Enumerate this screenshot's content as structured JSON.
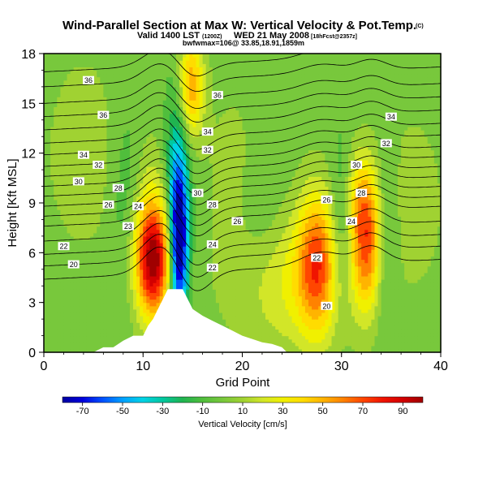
{
  "title": {
    "main": "Wind-Parallel Section at Max W: Vertical Velocity & Pot.Temp.",
    "copyright": "(C)",
    "valid": "Valid 1400 LST",
    "valid_small": "(1200Z)",
    "date": "WED 21 May 2008",
    "forecast": "[18hFcst@2357z]",
    "sub": "bwfwmax=106@ 33.85,18.91,1859m"
  },
  "chart_data": {
    "type": "heatmap",
    "title": "Wind-Parallel Section at Max W: Vertical Velocity & Pot.Temp.",
    "xlabel": "Grid Point",
    "ylabel": "Height [Kft MSL]",
    "xlim": [
      0,
      40
    ],
    "ylim": [
      0,
      18
    ],
    "xticks": [
      0,
      10,
      20,
      30,
      40
    ],
    "yticks": [
      0,
      3,
      6,
      9,
      12,
      15,
      18
    ],
    "colorbar": {
      "label": "Vertical Velocity [cm/s]",
      "ticks": [
        -70,
        -50,
        -30,
        -10,
        10,
        30,
        50,
        70,
        90
      ],
      "range": [
        -80,
        100
      ],
      "stops": [
        {
          "v": -80,
          "c": "#0000a0"
        },
        {
          "v": -70,
          "c": "#0000dc"
        },
        {
          "v": -60,
          "c": "#0050ff"
        },
        {
          "v": -50,
          "c": "#00a0ff"
        },
        {
          "v": -40,
          "c": "#00d2e6"
        },
        {
          "v": -30,
          "c": "#00c8a0"
        },
        {
          "v": -20,
          "c": "#20b450"
        },
        {
          "v": -10,
          "c": "#50be3c"
        },
        {
          "v": 0,
          "c": "#78c83c"
        },
        {
          "v": 10,
          "c": "#a0d232"
        },
        {
          "v": 20,
          "c": "#d2e628"
        },
        {
          "v": 30,
          "c": "#f0f000"
        },
        {
          "v": 40,
          "c": "#ffdc00"
        },
        {
          "v": 50,
          "c": "#ffb400"
        },
        {
          "v": 60,
          "c": "#ff8200"
        },
        {
          "v": 70,
          "c": "#ff4600"
        },
        {
          "v": 80,
          "c": "#f01400"
        },
        {
          "v": 90,
          "c": "#d20000"
        },
        {
          "v": 100,
          "c": "#a00000"
        }
      ]
    },
    "velocity_features": [
      {
        "x": 11,
        "y": 5.5,
        "sx": 1.3,
        "sy": 2.4,
        "a": 95
      },
      {
        "x": 10.5,
        "y": 8.5,
        "sx": 1.6,
        "sy": 3.2,
        "a": 18
      },
      {
        "x": 13.6,
        "y": 6.3,
        "sx": 0.65,
        "sy": 3.2,
        "a": -85
      },
      {
        "x": 13.5,
        "y": 11.0,
        "sx": 0.9,
        "sy": 4.0,
        "a": -35
      },
      {
        "x": 14.8,
        "y": 16.0,
        "sx": 0.9,
        "sy": 2.2,
        "a": 55
      },
      {
        "x": 27.5,
        "y": 5.5,
        "sx": 1.3,
        "sy": 3.0,
        "a": 55
      },
      {
        "x": 25,
        "y": 4.5,
        "sx": 4.0,
        "sy": 3.0,
        "a": 30
      },
      {
        "x": 32.5,
        "y": 6.5,
        "sx": 1.1,
        "sy": 2.8,
        "a": 62
      },
      {
        "x": 31.8,
        "y": 9.5,
        "sx": 1.2,
        "sy": 2.0,
        "a": 25
      },
      {
        "x": 30,
        "y": 8,
        "sx": 0.8,
        "sy": 3.5,
        "a": -22
      },
      {
        "x": 34.5,
        "y": 7,
        "sx": 0.8,
        "sy": 4.0,
        "a": -20
      },
      {
        "x": 8.5,
        "y": 9,
        "sx": 1.2,
        "sy": 4.0,
        "a": -18
      },
      {
        "x": 4,
        "y": 12,
        "sx": 2.5,
        "sy": 4.0,
        "a": 12
      },
      {
        "x": 19,
        "y": 11,
        "sx": 2.0,
        "sy": 4.0,
        "a": 8
      },
      {
        "x": 22,
        "y": 7,
        "sx": 2.0,
        "sy": 3.0,
        "a": -12
      },
      {
        "x": 37,
        "y": 9,
        "sx": 2.5,
        "sy": 4.0,
        "a": 10
      }
    ],
    "velocity_background": 0,
    "terrain_x": [
      0,
      5,
      6,
      7,
      8,
      9,
      10,
      10.5,
      11,
      11.5,
      12,
      12.5,
      14,
      14.5,
      15,
      16,
      17,
      18,
      19,
      20,
      21,
      22,
      23,
      24,
      24.5,
      40
    ],
    "terrain_ft": [
      0,
      0,
      0.3,
      0.3,
      0.7,
      1.0,
      1.0,
      1.6,
      2.0,
      2.6,
      3.2,
      3.8,
      3.8,
      3.2,
      2.6,
      2.2,
      1.9,
      1.6,
      1.3,
      1.0,
      0.8,
      0.6,
      0.5,
      0.3,
      0,
      0
    ],
    "isentropes": {
      "levels": [
        20,
        21,
        22,
        23,
        24,
        25,
        26,
        27,
        28,
        29,
        30,
        31,
        32,
        33,
        34,
        35,
        36,
        37
      ],
      "base_height_kft": [
        5.0,
        5.8,
        6.5,
        7.3,
        8.2,
        8.8,
        9.4,
        10.0,
        10.6,
        11.2,
        11.8,
        12.5,
        13.2,
        14.0,
        14.8,
        15.6,
        16.6,
        17.5
      ],
      "perturbations": [
        {
          "x": 12,
          "dy": 1.8,
          "sx": 1.8
        },
        {
          "x": 15,
          "dy": -1.5,
          "sx": 1.6
        },
        {
          "x": 28,
          "dy": 0.8,
          "sx": 2.0
        },
        {
          "x": 33,
          "dy": 1.0,
          "sx": 1.5
        }
      ]
    },
    "isentrope_labels": [
      {
        "text": "36",
        "x": 4.5,
        "y": 16.4
      },
      {
        "text": "36",
        "x": 17.5,
        "y": 15.5
      },
      {
        "text": "34",
        "x": 35,
        "y": 14.2
      },
      {
        "text": "36",
        "x": 6,
        "y": 14.3
      },
      {
        "text": "34",
        "x": 16.5,
        "y": 13.3
      },
      {
        "text": "32",
        "x": 34.5,
        "y": 12.6
      },
      {
        "text": "34",
        "x": 4,
        "y": 11.9
      },
      {
        "text": "32",
        "x": 16.5,
        "y": 12.2
      },
      {
        "text": "30",
        "x": 31.5,
        "y": 11.3
      },
      {
        "text": "32",
        "x": 5.5,
        "y": 11.3
      },
      {
        "text": "30",
        "x": 3.5,
        "y": 10.3
      },
      {
        "text": "28",
        "x": 7.5,
        "y": 9.9
      },
      {
        "text": "30",
        "x": 15.5,
        "y": 9.6
      },
      {
        "text": "28",
        "x": 32,
        "y": 9.6
      },
      {
        "text": "26",
        "x": 6.5,
        "y": 8.9
      },
      {
        "text": "24",
        "x": 9.5,
        "y": 8.8
      },
      {
        "text": "28",
        "x": 17,
        "y": 8.9
      },
      {
        "text": "26",
        "x": 28.5,
        "y": 9.2
      },
      {
        "text": "26",
        "x": 19.5,
        "y": 7.9
      },
      {
        "text": "24",
        "x": 31,
        "y": 7.9
      },
      {
        "text": "23",
        "x": 8.5,
        "y": 7.6
      },
      {
        "text": "22",
        "x": 2,
        "y": 6.4
      },
      {
        "text": "24",
        "x": 17,
        "y": 6.5
      },
      {
        "text": "22",
        "x": 27.5,
        "y": 5.7
      },
      {
        "text": "20",
        "x": 3,
        "y": 5.3
      },
      {
        "text": "22",
        "x": 17,
        "y": 5.1
      },
      {
        "text": "20",
        "x": 28.5,
        "y": 2.8
      }
    ]
  }
}
